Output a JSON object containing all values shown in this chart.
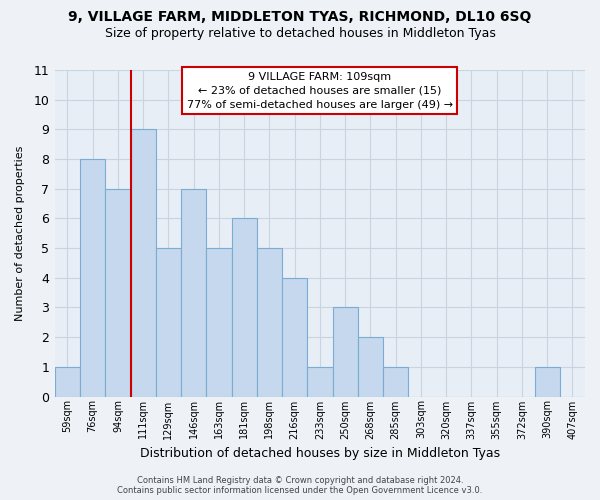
{
  "title1": "9, VILLAGE FARM, MIDDLETON TYAS, RICHMOND, DL10 6SQ",
  "title2": "Size of property relative to detached houses in Middleton Tyas",
  "xlabel": "Distribution of detached houses by size in Middleton Tyas",
  "ylabel": "Number of detached properties",
  "categories": [
    "59sqm",
    "76sqm",
    "94sqm",
    "111sqm",
    "129sqm",
    "146sqm",
    "163sqm",
    "181sqm",
    "198sqm",
    "216sqm",
    "233sqm",
    "250sqm",
    "268sqm",
    "285sqm",
    "303sqm",
    "320sqm",
    "337sqm",
    "355sqm",
    "372sqm",
    "390sqm",
    "407sqm"
  ],
  "values": [
    1,
    8,
    7,
    9,
    5,
    7,
    5,
    6,
    5,
    4,
    1,
    3,
    2,
    1,
    0,
    0,
    0,
    0,
    0,
    1,
    0
  ],
  "bar_color": "#c5d8ed",
  "bar_edge_color": "#7badd4",
  "subject_line_index": 3,
  "annotation_title": "9 VILLAGE FARM: 109sqm",
  "annotation_line1": "← 23% of detached houses are smaller (15)",
  "annotation_line2": "77% of semi-detached houses are larger (49) →",
  "annotation_box_color": "#ffffff",
  "annotation_box_edge": "#cc0000",
  "subject_line_color": "#cc0000",
  "ylim": [
    0,
    11
  ],
  "yticks": [
    0,
    1,
    2,
    3,
    4,
    5,
    6,
    7,
    8,
    9,
    10,
    11
  ],
  "footer1": "Contains HM Land Registry data © Crown copyright and database right 2024.",
  "footer2": "Contains public sector information licensed under the Open Government Licence v3.0.",
  "background_color": "#eef2f7",
  "plot_bg_color": "#e8eef5",
  "grid_color": "#c8d4e0"
}
